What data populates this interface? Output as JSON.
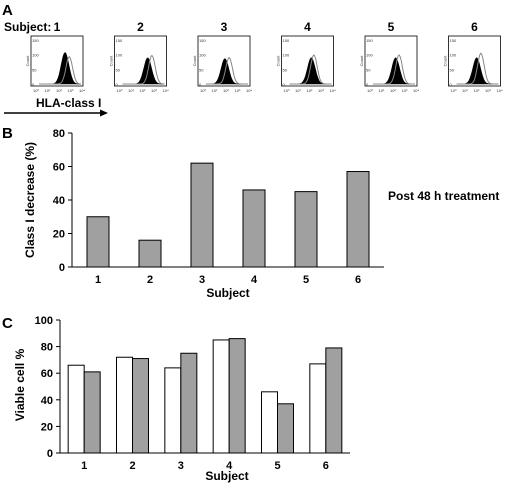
{
  "panel_a": {
    "letter": "A",
    "subject_label": "Subject:",
    "marker_label": "HLA-class I",
    "histograms": [
      {
        "subject": "1",
        "filled_peak": 0.72,
        "open_peak": 0.62
      },
      {
        "subject": "2",
        "filled_peak": 0.6,
        "open_peak": 0.65
      },
      {
        "subject": "3",
        "filled_peak": 0.58,
        "open_peak": 0.6
      },
      {
        "subject": "4",
        "filled_peak": 0.6,
        "open_peak": 0.66
      },
      {
        "subject": "5",
        "filled_peak": 0.6,
        "open_peak": 0.66
      },
      {
        "subject": "6",
        "filled_peak": 0.6,
        "open_peak": 0.7
      }
    ],
    "mini_axis": {
      "ylabel": "Count",
      "yticks": [
        "0",
        "50",
        "100",
        "150"
      ],
      "xticks": [
        "10⁰",
        "10¹",
        "10²",
        "10³",
        "10⁴"
      ]
    }
  },
  "chart_data": [
    {
      "panel": "B",
      "type": "bar",
      "categories": [
        "1",
        "2",
        "3",
        "4",
        "5",
        "6"
      ],
      "values": [
        30,
        16,
        62,
        46,
        45,
        57
      ],
      "xlabel": "Subject",
      "ylabel": "Class I decrease (%)",
      "ylim": [
        0,
        80
      ],
      "yticks": [
        "0",
        "20",
        "40",
        "60",
        "80"
      ],
      "annotation": "Post 48 h treatment",
      "bar_color": "#a0a0a0"
    },
    {
      "panel": "C",
      "type": "bar",
      "categories": [
        "1",
        "2",
        "3",
        "4",
        "5",
        "6"
      ],
      "series": [
        {
          "values": [
            66,
            72,
            64,
            85,
            46,
            67
          ],
          "color": "#ffffff"
        },
        {
          "values": [
            61,
            71,
            75,
            86,
            37,
            79
          ],
          "color": "#a0a0a0"
        }
      ],
      "xlabel": "Subject",
      "ylabel": "Viable cell %",
      "ylim": [
        0,
        100
      ],
      "yticks": [
        "0",
        "20",
        "40",
        "60",
        "80",
        "100"
      ]
    }
  ]
}
